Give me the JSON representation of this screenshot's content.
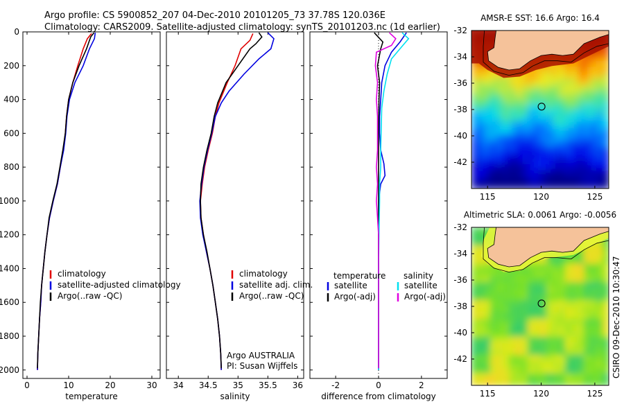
{
  "header": {
    "line1": "Argo profile: CS 5900852_207 04-Dec-2010 20101205_73 37.78S 120.036E",
    "line2": "Climatology: CARS2009. Satellite-adjusted climatology: synTS_20101203.nc (1d earlier)"
  },
  "side_credit": "CSIRO 09-Dec-2010 10:30:47",
  "colors": {
    "climatology": "#e00000",
    "satellite": "#0000e0",
    "argo": "#000000",
    "satellite_diff_salinity": "#00e0f0",
    "argo_diff_salinity": "#e000e0",
    "land": "#f5c29a"
  },
  "chart_data": [
    {
      "type": "line",
      "xlabel": "temperature",
      "xlim": [
        -1,
        32
      ],
      "ylim": [
        0,
        2050
      ],
      "y_reversed": true,
      "xticks": [
        "0",
        "10",
        "20",
        "30"
      ],
      "yticks": [
        "0",
        "200",
        "400",
        "600",
        "800",
        "1000",
        "1200",
        "1400",
        "1600",
        "1800",
        "2000"
      ],
      "legend": [
        "climatology",
        "satellite-adjusted climatology",
        "Argo(..raw -QC)"
      ],
      "series": [
        {
          "name": "climatology",
          "color": "#e00000",
          "points": [
            [
              15.5,
              10
            ],
            [
              14.5,
              40
            ],
            [
              13.5,
              100
            ],
            [
              12.2,
              200
            ],
            [
              11,
              300
            ],
            [
              10,
              400
            ],
            [
              9.5,
              500
            ],
            [
              9.2,
              600
            ],
            [
              8.7,
              700
            ],
            [
              8.0,
              800
            ],
            [
              7.3,
              900
            ],
            [
              6.3,
              1000
            ],
            [
              5.4,
              1100
            ],
            [
              4.8,
              1200
            ],
            [
              4.3,
              1300
            ],
            [
              3.9,
              1400
            ],
            [
              3.5,
              1500
            ],
            [
              3.3,
              1600
            ],
            [
              3.0,
              1700
            ],
            [
              2.8,
              1800
            ],
            [
              2.6,
              1900
            ],
            [
              2.5,
              2000
            ]
          ]
        },
        {
          "name": "satellite-adjusted climatology",
          "color": "#0000e0",
          "points": [
            [
              16.4,
              5
            ],
            [
              16.2,
              40
            ],
            [
              15,
              100
            ],
            [
              13.5,
              200
            ],
            [
              11.5,
              300
            ],
            [
              10.2,
              400
            ],
            [
              9.6,
              500
            ],
            [
              9.3,
              600
            ],
            [
              8.8,
              700
            ],
            [
              8.0,
              800
            ],
            [
              7.3,
              900
            ],
            [
              6.3,
              1000
            ],
            [
              5.4,
              1100
            ],
            [
              4.8,
              1200
            ],
            [
              4.3,
              1300
            ],
            [
              3.9,
              1400
            ],
            [
              3.5,
              1500
            ],
            [
              3.3,
              1600
            ],
            [
              3.0,
              1700
            ],
            [
              2.8,
              1800
            ],
            [
              2.6,
              1900
            ],
            [
              2.5,
              2000
            ]
          ]
        },
        {
          "name": "Argo(..raw -QC)",
          "color": "#000000",
          "points": [
            [
              16.1,
              5
            ],
            [
              15.3,
              30
            ],
            [
              14.3,
              100
            ],
            [
              12.5,
              200
            ],
            [
              11,
              300
            ],
            [
              10,
              400
            ],
            [
              9.5,
              500
            ],
            [
              9.2,
              600
            ],
            [
              8.6,
              700
            ],
            [
              7.9,
              800
            ],
            [
              7.2,
              900
            ],
            [
              6.2,
              1000
            ],
            [
              5.3,
              1100
            ],
            [
              4.8,
              1200
            ],
            [
              4.3,
              1300
            ],
            [
              3.9,
              1400
            ],
            [
              3.5,
              1500
            ],
            [
              3.2,
              1600
            ],
            [
              3.0,
              1700
            ],
            [
              2.8,
              1800
            ],
            [
              2.6,
              1900
            ],
            [
              2.5,
              1990
            ]
          ]
        }
      ]
    },
    {
      "type": "line",
      "xlabel": "salinity",
      "xlim": [
        33.8,
        36.1
      ],
      "ylim": [
        0,
        2050
      ],
      "y_reversed": true,
      "xticks": [
        "34",
        "34.5",
        "35",
        "35.5",
        "36"
      ],
      "legend": [
        "climatology",
        "satellite adj. clim.",
        "Argo(..raw -QC)"
      ],
      "annotation": [
        "Argo AUSTRALIA",
        "PI: Susan Wijffels"
      ],
      "series": [
        {
          "name": "climatology",
          "color": "#e00000",
          "points": [
            [
              35.25,
              10
            ],
            [
              35.2,
              50
            ],
            [
              35.05,
              100
            ],
            [
              34.95,
              200
            ],
            [
              34.82,
              300
            ],
            [
              34.68,
              420
            ],
            [
              34.62,
              500
            ],
            [
              34.57,
              600
            ],
            [
              34.5,
              700
            ],
            [
              34.44,
              800
            ],
            [
              34.4,
              900
            ],
            [
              34.37,
              1000
            ],
            [
              34.38,
              1100
            ],
            [
              34.42,
              1200
            ],
            [
              34.47,
              1300
            ],
            [
              34.53,
              1400
            ],
            [
              34.58,
              1500
            ],
            [
              34.62,
              1600
            ],
            [
              34.66,
              1700
            ],
            [
              34.69,
              1800
            ],
            [
              34.71,
              1900
            ],
            [
              34.72,
              2000
            ]
          ]
        },
        {
          "name": "satellite adj. clim.",
          "color": "#0000e0",
          "points": [
            [
              35.5,
              5
            ],
            [
              35.6,
              40
            ],
            [
              35.55,
              100
            ],
            [
              35.35,
              160
            ],
            [
              35.1,
              250
            ],
            [
              34.85,
              350
            ],
            [
              34.72,
              420
            ],
            [
              34.62,
              500
            ],
            [
              34.56,
              600
            ],
            [
              34.49,
              700
            ],
            [
              34.43,
              800
            ],
            [
              34.39,
              900
            ],
            [
              34.36,
              1000
            ],
            [
              34.37,
              1100
            ],
            [
              34.41,
              1200
            ],
            [
              34.47,
              1300
            ],
            [
              34.53,
              1400
            ],
            [
              34.58,
              1500
            ],
            [
              34.62,
              1600
            ],
            [
              34.66,
              1700
            ],
            [
              34.69,
              1800
            ],
            [
              34.71,
              1900
            ],
            [
              34.72,
              2000
            ]
          ]
        },
        {
          "name": "Argo(..raw -QC)",
          "color": "#000000",
          "points": [
            [
              35.35,
              5
            ],
            [
              35.4,
              30
            ],
            [
              35.3,
              70
            ],
            [
              35.2,
              100
            ],
            [
              35.0,
              200
            ],
            [
              34.8,
              300
            ],
            [
              34.66,
              420
            ],
            [
              34.6,
              500
            ],
            [
              34.55,
              600
            ],
            [
              34.48,
              700
            ],
            [
              34.42,
              800
            ],
            [
              34.38,
              900
            ],
            [
              34.37,
              1000
            ],
            [
              34.38,
              1100
            ],
            [
              34.42,
              1200
            ],
            [
              34.48,
              1300
            ],
            [
              34.53,
              1400
            ],
            [
              34.58,
              1500
            ],
            [
              34.62,
              1600
            ],
            [
              34.66,
              1700
            ],
            [
              34.69,
              1800
            ],
            [
              34.71,
              1900
            ],
            [
              34.72,
              1990
            ]
          ]
        }
      ]
    },
    {
      "type": "line",
      "xlabel": "difference from climatology",
      "xlim": [
        -3.2,
        3.2
      ],
      "ylim": [
        0,
        2050
      ],
      "y_reversed": true,
      "xticks": [
        "-2",
        "0",
        "2"
      ],
      "legend_headers": [
        "temperature",
        "salinity"
      ],
      "legend": [
        "satellite",
        "Argo(-adj)",
        "satellite",
        "Argo(-adj)"
      ],
      "series": [
        {
          "name": "satellite",
          "group": "temperature",
          "color": "#0000e0",
          "points": [
            [
              1.3,
              5
            ],
            [
              1.0,
              60
            ],
            [
              0.6,
              120
            ],
            [
              0.3,
              200
            ],
            [
              0.15,
              300
            ],
            [
              0.1,
              400
            ],
            [
              0.05,
              500
            ],
            [
              0.05,
              600
            ],
            [
              0.1,
              700
            ],
            [
              0.25,
              780
            ],
            [
              0.3,
              850
            ],
            [
              0.1,
              900
            ],
            [
              0.0,
              1000
            ],
            [
              0.0,
              1200
            ],
            [
              0.0,
              1400
            ],
            [
              0.0,
              1600
            ],
            [
              0.0,
              1800
            ],
            [
              0.0,
              2000
            ]
          ]
        },
        {
          "name": "Argo(-adj)",
          "group": "temperature",
          "color": "#000000",
          "points": [
            [
              -0.2,
              5
            ],
            [
              0.2,
              60
            ],
            [
              0.1,
              100
            ],
            [
              -0.05,
              200
            ],
            [
              0.05,
              300
            ],
            [
              0.02,
              400
            ],
            [
              0.0,
              600
            ],
            [
              0.0,
              800
            ],
            [
              0.0,
              1000
            ],
            [
              0.0,
              1200
            ],
            [
              0.0,
              1400
            ],
            [
              0.0,
              1600
            ],
            [
              0.0,
              1800
            ],
            [
              0.0,
              1990
            ]
          ]
        },
        {
          "name": "satellite",
          "group": "salinity",
          "color": "#00e0f0",
          "points": [
            [
              1.1,
              5
            ],
            [
              1.4,
              40
            ],
            [
              1.0,
              100
            ],
            [
              0.6,
              160
            ],
            [
              0.4,
              250
            ],
            [
              0.25,
              350
            ],
            [
              0.15,
              450
            ],
            [
              0.12,
              600
            ],
            [
              0.1,
              700
            ],
            [
              0.1,
              800
            ],
            [
              0.05,
              900
            ],
            [
              0.05,
              1000
            ],
            [
              0.02,
              1200
            ],
            [
              0.0,
              1400
            ],
            [
              0.0,
              1600
            ],
            [
              0.0,
              1800
            ],
            [
              0.0,
              2000
            ]
          ]
        },
        {
          "name": "Argo(-adj)",
          "group": "salinity",
          "color": "#e000e0",
          "points": [
            [
              0.5,
              5
            ],
            [
              0.8,
              40
            ],
            [
              0.6,
              80
            ],
            [
              -0.1,
              120
            ],
            [
              -0.15,
              200
            ],
            [
              -0.05,
              300
            ],
            [
              -0.1,
              400
            ],
            [
              -0.05,
              500
            ],
            [
              -0.05,
              600
            ],
            [
              -0.05,
              700
            ],
            [
              -0.1,
              800
            ],
            [
              -0.05,
              900
            ],
            [
              -0.1,
              1000
            ],
            [
              -0.05,
              1100
            ],
            [
              0.0,
              1200
            ],
            [
              0.0,
              1400
            ],
            [
              0.0,
              1600
            ],
            [
              0.0,
              1800
            ],
            [
              0.0,
              1990
            ]
          ]
        }
      ]
    },
    {
      "type": "heatmap",
      "title": "AMSR-E SST: 16.6  Argo: 16.4",
      "xlim": [
        113.5,
        126.3
      ],
      "ylim": [
        -44,
        -32
      ],
      "xticks": [
        "115",
        "120",
        "125"
      ],
      "yticks": [
        "-32",
        "-34",
        "-36",
        "-38",
        "-40",
        "-42"
      ],
      "marker": [
        120.036,
        -37.78
      ]
    },
    {
      "type": "heatmap",
      "title": "Altimetric SLA: 0.0061  Argo: -0.0056",
      "xlim": [
        113.5,
        126.3
      ],
      "ylim": [
        -44,
        -32
      ],
      "xticks": [
        "115",
        "120",
        "125"
      ],
      "yticks": [
        "-32",
        "-34",
        "-36",
        "-38",
        "-40",
        "-42"
      ],
      "marker": [
        120.036,
        -37.78
      ]
    }
  ]
}
